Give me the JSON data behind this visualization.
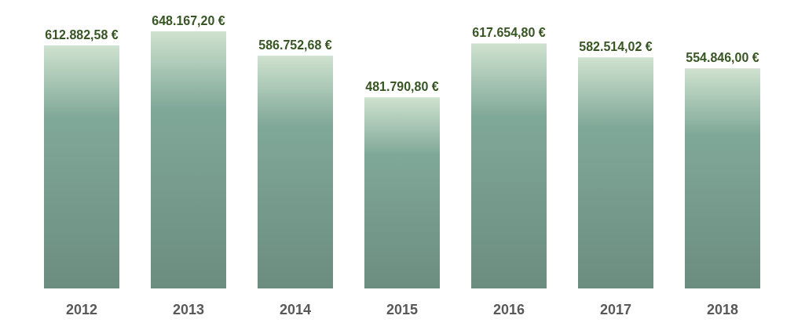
{
  "chart_data": {
    "type": "bar",
    "categories": [
      "2012",
      "2013",
      "2014",
      "2015",
      "2016",
      "2017",
      "2018"
    ],
    "values": [
      612882.58,
      648167.2,
      586752.68,
      481790.8,
      617654.8,
      582514.02,
      554846.0
    ],
    "value_labels": [
      "612.882,58 €",
      "648.167,20 €",
      "586.752,68 €",
      "481.790,80 €",
      "617.654,80 €",
      "582.514,02 €",
      "554.846,00 €"
    ],
    "color": "#80a898"
  }
}
